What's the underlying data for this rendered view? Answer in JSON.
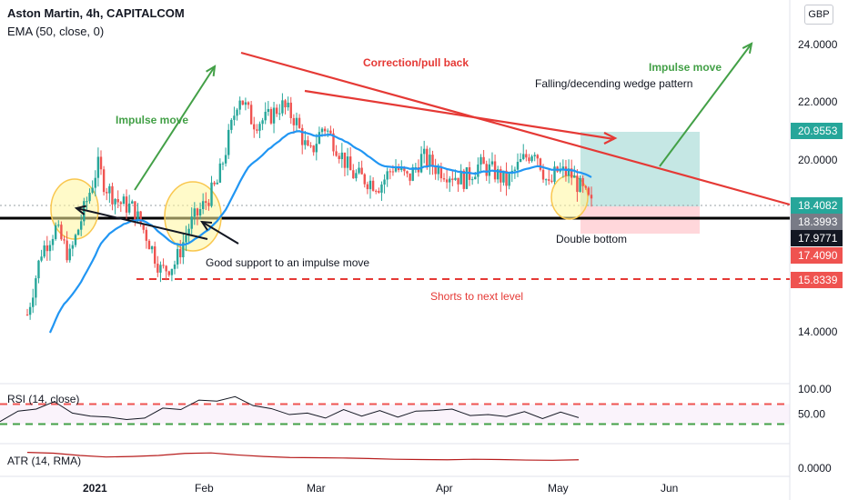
{
  "header": {
    "title": "Aston Martin, 4h, CAPITALCOM",
    "indicator": "EMA (50, close, 0)",
    "currency": "GBP"
  },
  "colors": {
    "up": "#26a69a",
    "down": "#ef5350",
    "ema": "#2196f3",
    "trend": "#e53935",
    "impulse": "#43a047",
    "support": "#000000",
    "target_zone": "#b2dfdb",
    "stop_zone": "#ffcdd2",
    "circle_fill": "#fff59d",
    "circle_stroke": "#f9c74f",
    "rsi": "#131722",
    "atr": "#b71c1c"
  },
  "chart_data": [
    {
      "type": "candlestick",
      "title": "Aston Martin, 4h, CAPITALCOM",
      "x_ticks": [
        "2021",
        "Feb",
        "Mar",
        "Apr",
        "May",
        "Jun"
      ],
      "ylim": [
        12.0,
        25.0
      ],
      "y_ticks": [
        "24.0000",
        "22.0000",
        "20.0000",
        "14.0000"
      ],
      "price_labels": [
        {
          "value": 20.9553,
          "text": "20.9553",
          "color": "#26a69a"
        },
        {
          "value": 18.4082,
          "text": "18.4082",
          "color": "#26a69a"
        },
        {
          "value": 18.3993,
          "text": "18.3993",
          "color": "#787b86"
        },
        {
          "value": 17.9771,
          "text": "17.9771",
          "color": "#131722"
        },
        {
          "value": 17.409,
          "text": "17.4090",
          "color": "#ef5350"
        },
        {
          "value": 15.8339,
          "text": "15.8339",
          "color": "#ef5350"
        }
      ],
      "levels": {
        "support": 17.9771,
        "short_target": 15.8339
      },
      "price_path": [
        {
          "t": 0,
          "p": 14.6
        },
        {
          "t": 2,
          "p": 16.8
        },
        {
          "t": 4,
          "p": 17.6
        },
        {
          "t": 6,
          "p": 16.6
        },
        {
          "t": 8,
          "p": 18.2
        },
        {
          "t": 10,
          "p": 19.8
        },
        {
          "t": 11,
          "p": 19.1
        },
        {
          "t": 13,
          "p": 18.5
        },
        {
          "t": 15,
          "p": 18.3
        },
        {
          "t": 17,
          "p": 17.3
        },
        {
          "t": 19,
          "p": 16.1
        },
        {
          "t": 21,
          "p": 16.4
        },
        {
          "t": 23,
          "p": 17.7
        },
        {
          "t": 25,
          "p": 18.4
        },
        {
          "t": 27,
          "p": 19.2
        },
        {
          "t": 29,
          "p": 21.2
        },
        {
          "t": 30,
          "p": 22.3
        },
        {
          "t": 32,
          "p": 21.3
        },
        {
          "t": 34,
          "p": 21.4
        },
        {
          "t": 36,
          "p": 21.9
        },
        {
          "t": 38,
          "p": 21.4
        },
        {
          "t": 40,
          "p": 20.1
        },
        {
          "t": 42,
          "p": 21.2
        },
        {
          "t": 44,
          "p": 20.4
        },
        {
          "t": 46,
          "p": 19.5
        },
        {
          "t": 48,
          "p": 19.3
        },
        {
          "t": 50,
          "p": 19.1
        },
        {
          "t": 52,
          "p": 19.8
        },
        {
          "t": 54,
          "p": 19.3
        },
        {
          "t": 56,
          "p": 20.1
        },
        {
          "t": 58,
          "p": 19.7
        },
        {
          "t": 60,
          "p": 19.5
        },
        {
          "t": 62,
          "p": 19.3
        },
        {
          "t": 64,
          "p": 19.8
        },
        {
          "t": 66,
          "p": 19.6
        },
        {
          "t": 68,
          "p": 19.2
        },
        {
          "t": 70,
          "p": 19.9
        },
        {
          "t": 72,
          "p": 20.4
        },
        {
          "t": 74,
          "p": 19.0
        },
        {
          "t": 75,
          "p": 19.6
        },
        {
          "t": 77,
          "p": 19.5
        },
        {
          "t": 79,
          "p": 18.8
        },
        {
          "t": 80,
          "p": 18.4
        }
      ],
      "annotations": [
        "Impulse move",
        "Correction/pull back",
        "Impulse move",
        "Falling/decending wedge pattern",
        "Good support to an impulse  move",
        "Double bottom",
        "Shorts to next level"
      ]
    },
    {
      "type": "line",
      "name": "RSI",
      "label": "RSI (14, close)",
      "ylim": [
        0,
        100
      ],
      "y_ticks": [
        "100.00",
        "50.00"
      ],
      "levels": [
        70,
        30
      ],
      "values": [
        38,
        52,
        63,
        71,
        55,
        42,
        47,
        35,
        45,
        58,
        62,
        74,
        79,
        81,
        70,
        57,
        52,
        48,
        45,
        55,
        49,
        53,
        47,
        52,
        60,
        56,
        50,
        45,
        48,
        51,
        44,
        50,
        46
      ]
    },
    {
      "type": "line",
      "name": "ATR",
      "label": "ATR (14, RMA)",
      "y_ticks": [
        "0.0000"
      ],
      "values": [
        0.62,
        0.59,
        0.5,
        0.44,
        0.46,
        0.5,
        0.58,
        0.6,
        0.52,
        0.46,
        0.42,
        0.41,
        0.4,
        0.38,
        0.35,
        0.34,
        0.33,
        0.35,
        0.34,
        0.32,
        0.31,
        0.33
      ]
    }
  ]
}
